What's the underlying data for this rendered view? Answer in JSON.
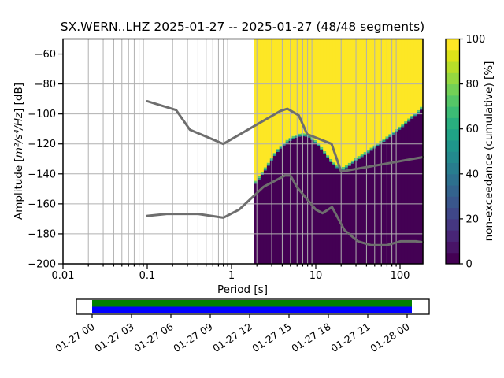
{
  "title": "SX.WERN..LHZ   2025-01-27 -- 2025-01-27  (48/48 segments)",
  "station": {
    "network": "SX",
    "station": "WERN",
    "channel": "LHZ",
    "date_start": "2025-01-27",
    "date_end": "2025-01-27",
    "segments_used": "48/48"
  },
  "axes": {
    "xlabel": "Period [s]",
    "ylabel_parts": [
      "Amplitude [",
      "m²/s⁴/Hz",
      "] [dB]"
    ],
    "x_ticks": [
      {
        "v": 0.01,
        "label": "0.01"
      },
      {
        "v": 0.1,
        "label": "0.1"
      },
      {
        "v": 1,
        "label": "1"
      },
      {
        "v": 10,
        "label": "10"
      },
      {
        "v": 100,
        "label": "100"
      }
    ],
    "y_ticks": [
      {
        "v": -60,
        "label": "−60"
      },
      {
        "v": -80,
        "label": "−80"
      },
      {
        "v": -100,
        "label": "−100"
      },
      {
        "v": -120,
        "label": "−120"
      },
      {
        "v": -140,
        "label": "−140"
      },
      {
        "v": -160,
        "label": "−160"
      },
      {
        "v": -180,
        "label": "−180"
      },
      {
        "v": -200,
        "label": "−200"
      }
    ]
  },
  "colorbar": {
    "label": "non-exceedance (cumulative) [%]",
    "ticks": [
      {
        "v": 0,
        "label": "0"
      },
      {
        "v": 20,
        "label": "20"
      },
      {
        "v": 40,
        "label": "40"
      },
      {
        "v": 60,
        "label": "60"
      },
      {
        "v": 80,
        "label": "80"
      },
      {
        "v": 100,
        "label": "100"
      }
    ],
    "range": [
      0,
      100
    ],
    "viridis20": [
      "#440154",
      "#481467",
      "#482576",
      "#453781",
      "#3f4788",
      "#39568c",
      "#33638d",
      "#2d708e",
      "#287d8e",
      "#238a8d",
      "#1f968b",
      "#20a386",
      "#29af7f",
      "#3cbc75",
      "#55c667",
      "#73d056",
      "#95d840",
      "#b8de29",
      "#dce319",
      "#fde725"
    ]
  },
  "colors": {
    "hist_low": "#440154",
    "hist_band_teal": "#21918c",
    "hist_band_green": "#5ec962",
    "hist_high": "#fde725",
    "grid": "#b0b0b0",
    "noise_model": "#6e6e6e",
    "frame": "#000000",
    "timeline_green": "#008000",
    "timeline_blue": "#0000ff"
  },
  "timeline": {
    "tick_labels": [
      "01-27 00",
      "01-27 03",
      "01-27 06",
      "01-27 09",
      "01-27 12",
      "01-27 15",
      "01-27 18",
      "01-27 21",
      "01-28 00"
    ]
  },
  "chart_data": {
    "type": "heatmap",
    "title": "SX.WERN..LHZ   2025-01-27 -- 2025-01-27  (48/48 segments)",
    "xlabel": "Period [s]",
    "ylabel": "Amplitude [m²/s⁴/Hz] [dB]",
    "x_scale": "log",
    "xlim": [
      0.01,
      186.6
    ],
    "ylim": [
      -200,
      -50
    ],
    "grid": true,
    "colorbar_label": "non-exceedance (cumulative) [%]",
    "colorbar_range": [
      0,
      100
    ],
    "histogram": {
      "description": "Cumulative non-exceedance PPSD: yellow=100% above boundary, dark purple=0% below, thin teal/green transition at boundary",
      "period_range": [
        1.866,
        186.6
      ],
      "n_columns": 54,
      "band_db_teal": 1.0,
      "band_db_green": 1.0,
      "boundary_db": [
        [
          1.87,
          -148
        ],
        [
          2.1,
          -144
        ],
        [
          2.35,
          -140
        ],
        [
          2.6,
          -136.5
        ],
        [
          2.9,
          -132.5
        ],
        [
          3.2,
          -128.5
        ],
        [
          3.6,
          -124.8
        ],
        [
          4.1,
          -121.5
        ],
        [
          4.7,
          -118.8
        ],
        [
          5.4,
          -116.8
        ],
        [
          6.2,
          -115.3
        ],
        [
          7.2,
          -114.8
        ],
        [
          8.2,
          -115.5
        ],
        [
          9.2,
          -117.8
        ],
        [
          10.5,
          -121
        ],
        [
          12,
          -125
        ],
        [
          13.8,
          -129.5
        ],
        [
          15.8,
          -133.5
        ],
        [
          18,
          -136.3
        ],
        [
          20,
          -138
        ],
        [
          22,
          -137
        ],
        [
          25,
          -134.8
        ],
        [
          29,
          -132
        ],
        [
          34,
          -129.3
        ],
        [
          41,
          -126.5
        ],
        [
          49,
          -123.3
        ],
        [
          59,
          -120
        ],
        [
          71,
          -116.8
        ],
        [
          85,
          -113.3
        ],
        [
          102,
          -109.8
        ],
        [
          122,
          -106
        ],
        [
          146,
          -102
        ],
        [
          170,
          -98.8
        ],
        [
          186.6,
          -96
        ]
      ]
    },
    "noise_models": {
      "nhnm": [
        [
          0.1,
          -91.5
        ],
        [
          0.22,
          -97.4
        ],
        [
          0.32,
          -110.5
        ],
        [
          0.8,
          -120.0
        ],
        [
          3.8,
          -98.0
        ],
        [
          4.6,
          -96.5
        ],
        [
          6.3,
          -101.0
        ],
        [
          7.9,
          -113.5
        ],
        [
          15.4,
          -120.0
        ],
        [
          20.0,
          -138.5
        ],
        [
          186.6,
          -128.8
        ]
      ],
      "nlnm": [
        [
          0.1,
          -168.0
        ],
        [
          0.17,
          -166.7
        ],
        [
          0.4,
          -166.7
        ],
        [
          0.8,
          -169.2
        ],
        [
          1.24,
          -163.7
        ],
        [
          2.4,
          -148.6
        ],
        [
          4.3,
          -141.1
        ],
        [
          5.0,
          -141.1
        ],
        [
          6.0,
          -149.0
        ],
        [
          10.0,
          -163.8
        ],
        [
          12.0,
          -166.2
        ],
        [
          15.6,
          -162.1
        ],
        [
          21.9,
          -177.5
        ],
        [
          31.6,
          -185.0
        ],
        [
          45.0,
          -187.5
        ],
        [
          70.0,
          -187.5
        ],
        [
          101.0,
          -185.0
        ],
        [
          154.0,
          -185.0
        ],
        [
          186.6,
          -185.6
        ]
      ]
    },
    "timeline": {
      "tick_labels": [
        "01-27 00",
        "01-27 03",
        "01-27 06",
        "01-27 09",
        "01-27 12",
        "01-27 15",
        "01-27 18",
        "01-27 21",
        "01-28 00"
      ],
      "coverage_bars": [
        "green: processed segments",
        "blue: data availability"
      ],
      "coverage_hours": [
        0,
        24.4
      ]
    }
  }
}
